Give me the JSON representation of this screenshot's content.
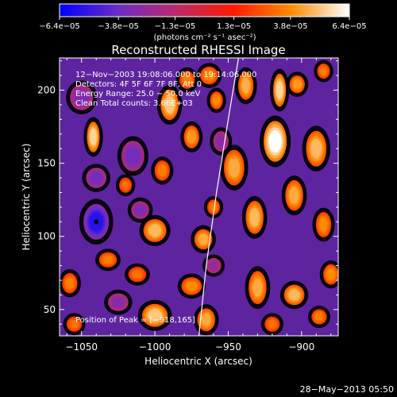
{
  "chart_data": {
    "type": "heatmap",
    "title": "Reconstructed RHESSI Image",
    "xlabel": "Heliocentric X (arcsec)",
    "ylabel": "Heliocentric Y (arcsec)",
    "xlim": [
      -1065,
      -875
    ],
    "ylim": [
      32,
      222
    ],
    "x_ticks": [
      -1050,
      -1000,
      -950,
      -900
    ],
    "y_ticks": [
      50,
      100,
      150,
      200
    ],
    "x_tick_labels": [
      "−1050",
      "−1000",
      "−950",
      "−900"
    ],
    "y_tick_labels": [
      "50",
      "100",
      "150",
      "200"
    ],
    "colorbar": {
      "range": [
        -6.4e-05,
        6.4e-05
      ],
      "ticks": [
        -6.4e-05,
        -3.8e-05,
        -1.3e-05,
        1.3e-05,
        3.8e-05,
        6.4e-05
      ],
      "tick_labels": [
        "−6.4e−05",
        "−3.8e−05",
        "−1.3e−05",
        "1.3e−05",
        "3.8e−05",
        "6.4e−05"
      ],
      "units": "(photons cm⁻² s⁻¹ asec⁻²)",
      "colors": [
        "#0000ff",
        "#6a2cc8",
        "#bb2a6e",
        "#ff1a00",
        "#ff8c00",
        "#ffffff"
      ]
    },
    "annotations": [
      "12−Nov−2003 19:08:06.000 to 19:14:06.000",
      "Detectors: 4F 5F 6F 7F 8F, Att 0",
      "Energy Range: 25.0 − 50.0 keV",
      "Clean    Total counts: 3.66E+03"
    ],
    "peak_label": "Position of Peak = [−918,165]",
    "peak": [
      -918,
      165
    ],
    "limb_curve": [
      [
        -970,
        32
      ],
      [
        -965,
        80
      ],
      [
        -958,
        130
      ],
      [
        -950,
        180
      ],
      [
        -943,
        222
      ]
    ],
    "minimum_marker": [
      -1040,
      110
    ],
    "blobs": [
      {
        "x": -1042,
        "y": 168,
        "rx": 5,
        "ry": 12,
        "v": 0.85
      },
      {
        "x": -990,
        "y": 190,
        "rx": 7,
        "ry": 12,
        "v": 0.8
      },
      {
        "x": -978,
        "y": 207,
        "rx": 6,
        "ry": 7,
        "v": 0.55
      },
      {
        "x": -963,
        "y": 210,
        "rx": 7,
        "ry": 7,
        "v": 0.6
      },
      {
        "x": -958,
        "y": 193,
        "rx": 5,
        "ry": 7,
        "v": 0.6
      },
      {
        "x": -938,
        "y": 203,
        "rx": 6,
        "ry": 11,
        "v": 0.72
      },
      {
        "x": -915,
        "y": 200,
        "rx": 5,
        "ry": 13,
        "v": 0.85
      },
      {
        "x": -903,
        "y": 204,
        "rx": 6,
        "ry": 7,
        "v": 0.65
      },
      {
        "x": -885,
        "y": 213,
        "rx": 5,
        "ry": 6,
        "v": 0.55
      },
      {
        "x": -918,
        "y": 165,
        "rx": 9,
        "ry": 16,
        "v": 1.0
      },
      {
        "x": -890,
        "y": 160,
        "rx": 8,
        "ry": 14,
        "v": 0.75
      },
      {
        "x": -975,
        "y": 168,
        "rx": 6,
        "ry": 9,
        "v": 0.65
      },
      {
        "x": -946,
        "y": 147,
        "rx": 8,
        "ry": 14,
        "v": 0.7
      },
      {
        "x": -995,
        "y": 145,
        "rx": 6,
        "ry": 8,
        "v": 0.55
      },
      {
        "x": -1020,
        "y": 135,
        "rx": 5,
        "ry": 6,
        "v": 0.5
      },
      {
        "x": -960,
        "y": 120,
        "rx": 5,
        "ry": 6,
        "v": 0.55
      },
      {
        "x": -932,
        "y": 113,
        "rx": 7,
        "ry": 13,
        "v": 0.75
      },
      {
        "x": -905,
        "y": 128,
        "rx": 7,
        "ry": 12,
        "v": 0.7
      },
      {
        "x": -885,
        "y": 108,
        "rx": 6,
        "ry": 10,
        "v": 0.6
      },
      {
        "x": -1000,
        "y": 104,
        "rx": 9,
        "ry": 9,
        "v": 0.75
      },
      {
        "x": -967,
        "y": 98,
        "rx": 7,
        "ry": 8,
        "v": 0.7
      },
      {
        "x": -1032,
        "y": 84,
        "rx": 7,
        "ry": 6,
        "v": 0.55
      },
      {
        "x": -1012,
        "y": 74,
        "rx": 7,
        "ry": 6,
        "v": 0.5
      },
      {
        "x": -975,
        "y": 66,
        "rx": 8,
        "ry": 7,
        "v": 0.6
      },
      {
        "x": -1058,
        "y": 68,
        "rx": 6,
        "ry": 8,
        "v": 0.55
      },
      {
        "x": -1000,
        "y": 46,
        "rx": 10,
        "ry": 9,
        "v": 0.8
      },
      {
        "x": -965,
        "y": 43,
        "rx": 7,
        "ry": 9,
        "v": 0.7
      },
      {
        "x": -930,
        "y": 65,
        "rx": 7,
        "ry": 13,
        "v": 0.7
      },
      {
        "x": -905,
        "y": 60,
        "rx": 8,
        "ry": 8,
        "v": 0.75
      },
      {
        "x": -880,
        "y": 74,
        "rx": 6,
        "ry": 8,
        "v": 0.6
      },
      {
        "x": -920,
        "y": 40,
        "rx": 6,
        "ry": 6,
        "v": 0.5
      },
      {
        "x": -888,
        "y": 45,
        "rx": 6,
        "ry": 6,
        "v": 0.55
      },
      {
        "x": -1055,
        "y": 40,
        "rx": 6,
        "ry": 6,
        "v": 0.5
      },
      {
        "x": -1040,
        "y": 110,
        "rx": 10,
        "ry": 14,
        "v": -0.85
      },
      {
        "x": -1015,
        "y": 155,
        "rx": 9,
        "ry": 12,
        "v": -0.55
      },
      {
        "x": -1050,
        "y": 195,
        "rx": 9,
        "ry": 10,
        "v": -0.5
      },
      {
        "x": -1040,
        "y": 140,
        "rx": 8,
        "ry": 8,
        "v": -0.55
      },
      {
        "x": -1010,
        "y": 118,
        "rx": 7,
        "ry": 7,
        "v": -0.5
      },
      {
        "x": -955,
        "y": 165,
        "rx": 6,
        "ry": 8,
        "v": -0.45
      },
      {
        "x": -960,
        "y": 80,
        "rx": 6,
        "ry": 6,
        "v": -0.4
      },
      {
        "x": -1025,
        "y": 55,
        "rx": 8,
        "ry": 7,
        "v": -0.45
      }
    ]
  },
  "footer": {
    "timestamp": "28−May−2013 05:50"
  }
}
